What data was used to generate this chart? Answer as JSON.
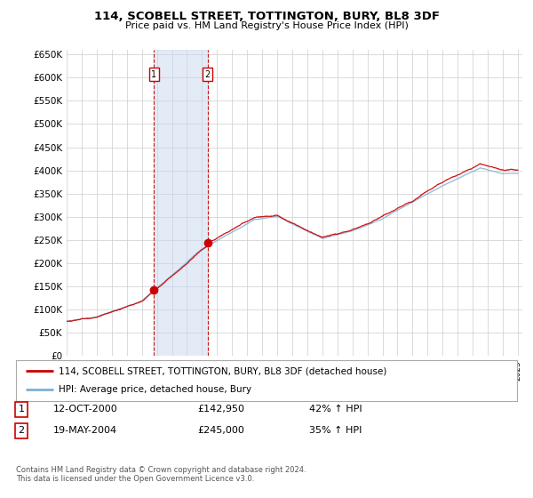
{
  "title": "114, SCOBELL STREET, TOTTINGTON, BURY, BL8 3DF",
  "subtitle": "Price paid vs. HM Land Registry's House Price Index (HPI)",
  "legend_line1": "114, SCOBELL STREET, TOTTINGTON, BURY, BL8 3DF (detached house)",
  "legend_line2": "HPI: Average price, detached house, Bury",
  "transaction1_date": "12-OCT-2000",
  "transaction1_price": "£142,950",
  "transaction1_hpi": "42% ↑ HPI",
  "transaction2_date": "19-MAY-2004",
  "transaction2_price": "£245,000",
  "transaction2_hpi": "35% ↑ HPI",
  "footer": "Contains HM Land Registry data © Crown copyright and database right 2024.\nThis data is licensed under the Open Government Licence v3.0.",
  "ylim": [
    0,
    660000
  ],
  "yticks": [
    0,
    50000,
    100000,
    150000,
    200000,
    250000,
    300000,
    350000,
    400000,
    450000,
    500000,
    550000,
    600000,
    650000
  ],
  "hpi_color": "#7bafd4",
  "price_color": "#cc0000",
  "vline_color": "#cc0000",
  "background_color": "#ffffff",
  "grid_color": "#cccccc",
  "transaction1_x": 2000.79,
  "transaction2_x": 2004.38,
  "transaction1_price_val": 142950,
  "transaction2_price_val": 245000
}
